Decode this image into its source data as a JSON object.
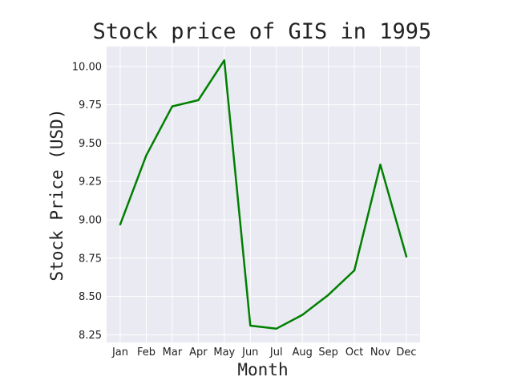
{
  "chart_data": {
    "type": "line",
    "title": "Stock price of GIS in 1995",
    "xlabel": "Month",
    "ylabel": "Stock Price (USD)",
    "categories": [
      "Jan",
      "Feb",
      "Mar",
      "Apr",
      "May",
      "Jun",
      "Jul",
      "Aug",
      "Sep",
      "Oct",
      "Nov",
      "Dec"
    ],
    "series": [
      {
        "values": [
          8.97,
          9.42,
          9.74,
          9.78,
          10.04,
          8.31,
          8.29,
          8.38,
          8.51,
          8.67,
          9.36,
          8.76
        ],
        "color": "#008000"
      }
    ],
    "yticks": [
      "8.25",
      "8.50",
      "8.75",
      "9.00",
      "9.25",
      "9.50",
      "9.75",
      "10.00"
    ],
    "ytick_values": [
      8.25,
      8.5,
      8.75,
      9.0,
      9.25,
      9.5,
      9.75,
      10.0
    ],
    "ylim": [
      8.2,
      10.13
    ],
    "grid": true,
    "background_color": "#eaeaf2",
    "grid_color": "#ffffff",
    "legend": "none"
  }
}
